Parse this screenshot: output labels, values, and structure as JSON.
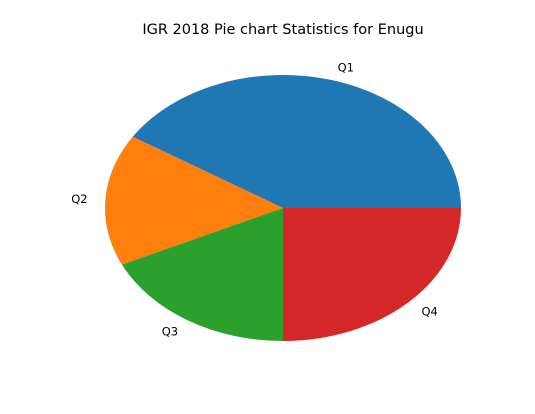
{
  "chart_data": {
    "type": "pie",
    "title": "IGR 2018 Pie chart Statistics for Enugu",
    "categories": [
      "Q1",
      "Q2",
      "Q3",
      "Q4"
    ],
    "values": [
      41,
      16,
      18,
      25
    ],
    "colors": [
      "#1f77b4",
      "#ff7f0e",
      "#2ca02c",
      "#d62728"
    ],
    "start_angle_deg": 0,
    "direction": "counterclockwise",
    "legend": "none"
  }
}
